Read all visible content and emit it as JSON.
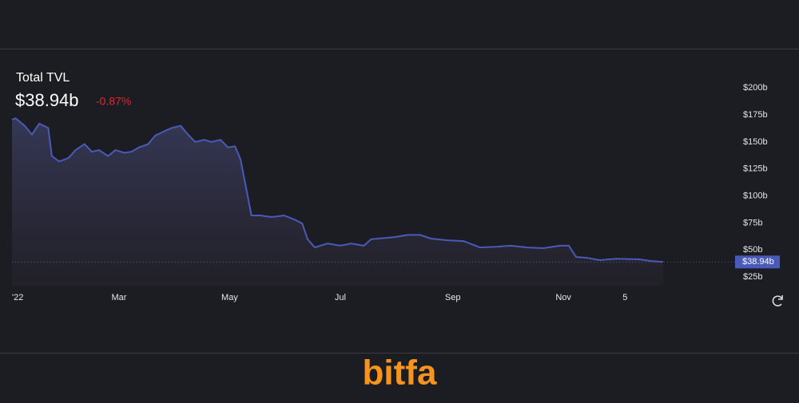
{
  "chart_data": {
    "type": "area",
    "title": "Total TVL",
    "value_label": "$38.94b",
    "change": "-0.87%",
    "x": [
      0,
      2,
      7,
      11,
      15,
      20,
      22,
      26,
      31,
      35,
      40,
      44,
      48,
      53,
      57,
      62,
      66,
      70,
      75,
      79,
      84,
      88,
      93,
      97,
      101,
      106,
      110,
      115,
      119,
      123,
      126,
      129,
      132,
      137,
      143,
      150,
      156,
      160,
      163,
      167,
      174,
      181,
      187,
      194,
      198,
      205,
      211,
      218,
      225,
      231,
      240,
      249,
      258,
      267,
      275,
      284,
      293,
      302,
      307,
      311,
      317,
      324,
      333,
      346,
      352,
      359
    ],
    "values": [
      170.6,
      172,
      165,
      157,
      167,
      163,
      137,
      132,
      135,
      142.5,
      148,
      141,
      142.5,
      137,
      142.5,
      140,
      141,
      145,
      148,
      156,
      160,
      163,
      165,
      157,
      150,
      152,
      150,
      152,
      145,
      146,
      134,
      108,
      82,
      82,
      80.5,
      82,
      78,
      74.6,
      60,
      52.4,
      56,
      54,
      56,
      54,
      60,
      61,
      62,
      64,
      64,
      60.6,
      59,
      58.3,
      52.4,
      53,
      54,
      52.4,
      51.7,
      54,
      54,
      43.6,
      42.8,
      40.6,
      42,
      41.4,
      39.9,
      38.94
    ],
    "color": "#4a5ab8",
    "xlim": [
      0,
      359
    ],
    "xticks": [
      {
        "value": 0,
        "label": "'22"
      },
      {
        "value": 59,
        "label": "Mar"
      },
      {
        "value": 120,
        "label": "May"
      },
      {
        "value": 181,
        "label": "Jul"
      },
      {
        "value": 243,
        "label": "Sep"
      },
      {
        "value": 304,
        "label": "Nov"
      },
      {
        "value": 338,
        "label": "5"
      }
    ],
    "ylim": [
      17,
      210
    ],
    "yticks": [
      {
        "value": 25,
        "label": "$25b"
      },
      {
        "value": 50,
        "label": "$50b"
      },
      {
        "value": 75,
        "label": "$75b"
      },
      {
        "value": 100,
        "label": "$100b"
      },
      {
        "value": 125,
        "label": "$125b"
      },
      {
        "value": 150,
        "label": "$150b"
      },
      {
        "value": 175,
        "label": "$175b"
      },
      {
        "value": 200,
        "label": "$200b"
      }
    ]
  },
  "logo": "bitfa"
}
